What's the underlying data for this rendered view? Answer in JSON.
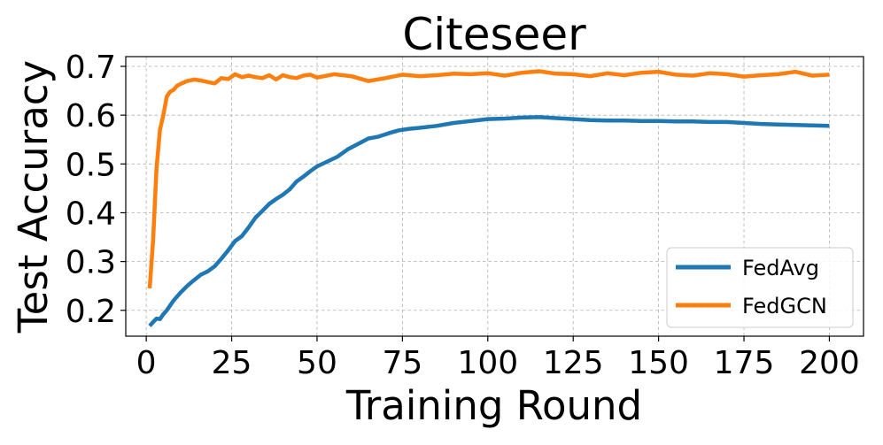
{
  "chart_data": {
    "type": "line",
    "title": "Citeseer",
    "xlabel": "Training Round",
    "ylabel": "Test Accuracy",
    "xlim": [
      -6,
      210
    ],
    "ylim": [
      0.147,
      0.72
    ],
    "xticks": [
      0,
      25,
      50,
      75,
      100,
      125,
      150,
      175,
      200
    ],
    "yticks": [
      0.2,
      0.3,
      0.4,
      0.5,
      0.6,
      0.7
    ],
    "ytick_labels": [
      "0.2",
      "0.3",
      "0.4",
      "0.5",
      "0.6",
      "0.7"
    ],
    "grid": true,
    "legend_position": "lower-right",
    "series": [
      {
        "name": "FedAvg",
        "color": "#1f77b4",
        "x": [
          1,
          2,
          3,
          4,
          5,
          6,
          8,
          10,
          12,
          14,
          16,
          18,
          20,
          22,
          24,
          26,
          28,
          30,
          32,
          34,
          36,
          38,
          40,
          42,
          44,
          46,
          48,
          50,
          53,
          56,
          59,
          62,
          65,
          68,
          71,
          74,
          77,
          80,
          85,
          90,
          95,
          100,
          105,
          110,
          115,
          120,
          125,
          130,
          135,
          140,
          145,
          150,
          155,
          160,
          165,
          170,
          175,
          180,
          185,
          190,
          195,
          200
        ],
        "y": [
          0.168,
          0.176,
          0.183,
          0.182,
          0.192,
          0.2,
          0.22,
          0.236,
          0.25,
          0.262,
          0.273,
          0.28,
          0.29,
          0.306,
          0.323,
          0.342,
          0.352,
          0.37,
          0.39,
          0.404,
          0.418,
          0.428,
          0.437,
          0.448,
          0.464,
          0.474,
          0.485,
          0.495,
          0.505,
          0.515,
          0.53,
          0.541,
          0.552,
          0.556,
          0.563,
          0.569,
          0.572,
          0.574,
          0.578,
          0.584,
          0.588,
          0.592,
          0.593,
          0.595,
          0.596,
          0.594,
          0.592,
          0.59,
          0.589,
          0.589,
          0.588,
          0.588,
          0.587,
          0.587,
          0.586,
          0.586,
          0.584,
          0.582,
          0.581,
          0.58,
          0.579,
          0.578
        ]
      },
      {
        "name": "FedGCN",
        "color": "#ff7f0e",
        "x": [
          1,
          2,
          3,
          4,
          5,
          6,
          7,
          8,
          9,
          10,
          12,
          14,
          16,
          18,
          20,
          22,
          24,
          26,
          28,
          30,
          32,
          34,
          36,
          38,
          40,
          42,
          44,
          46,
          48,
          50,
          55,
          60,
          65,
          70,
          75,
          80,
          85,
          90,
          95,
          100,
          105,
          110,
          115,
          120,
          125,
          130,
          135,
          140,
          145,
          150,
          155,
          160,
          165,
          170,
          175,
          180,
          185,
          190,
          195,
          200
        ],
        "y": [
          0.245,
          0.345,
          0.49,
          0.57,
          0.6,
          0.638,
          0.648,
          0.652,
          0.66,
          0.664,
          0.67,
          0.673,
          0.671,
          0.668,
          0.665,
          0.676,
          0.674,
          0.684,
          0.678,
          0.681,
          0.678,
          0.676,
          0.682,
          0.673,
          0.682,
          0.678,
          0.676,
          0.681,
          0.683,
          0.677,
          0.684,
          0.68,
          0.67,
          0.676,
          0.683,
          0.68,
          0.682,
          0.685,
          0.684,
          0.686,
          0.681,
          0.687,
          0.69,
          0.685,
          0.684,
          0.68,
          0.686,
          0.682,
          0.687,
          0.689,
          0.683,
          0.681,
          0.686,
          0.684,
          0.679,
          0.682,
          0.684,
          0.689,
          0.681,
          0.683
        ]
      }
    ]
  }
}
